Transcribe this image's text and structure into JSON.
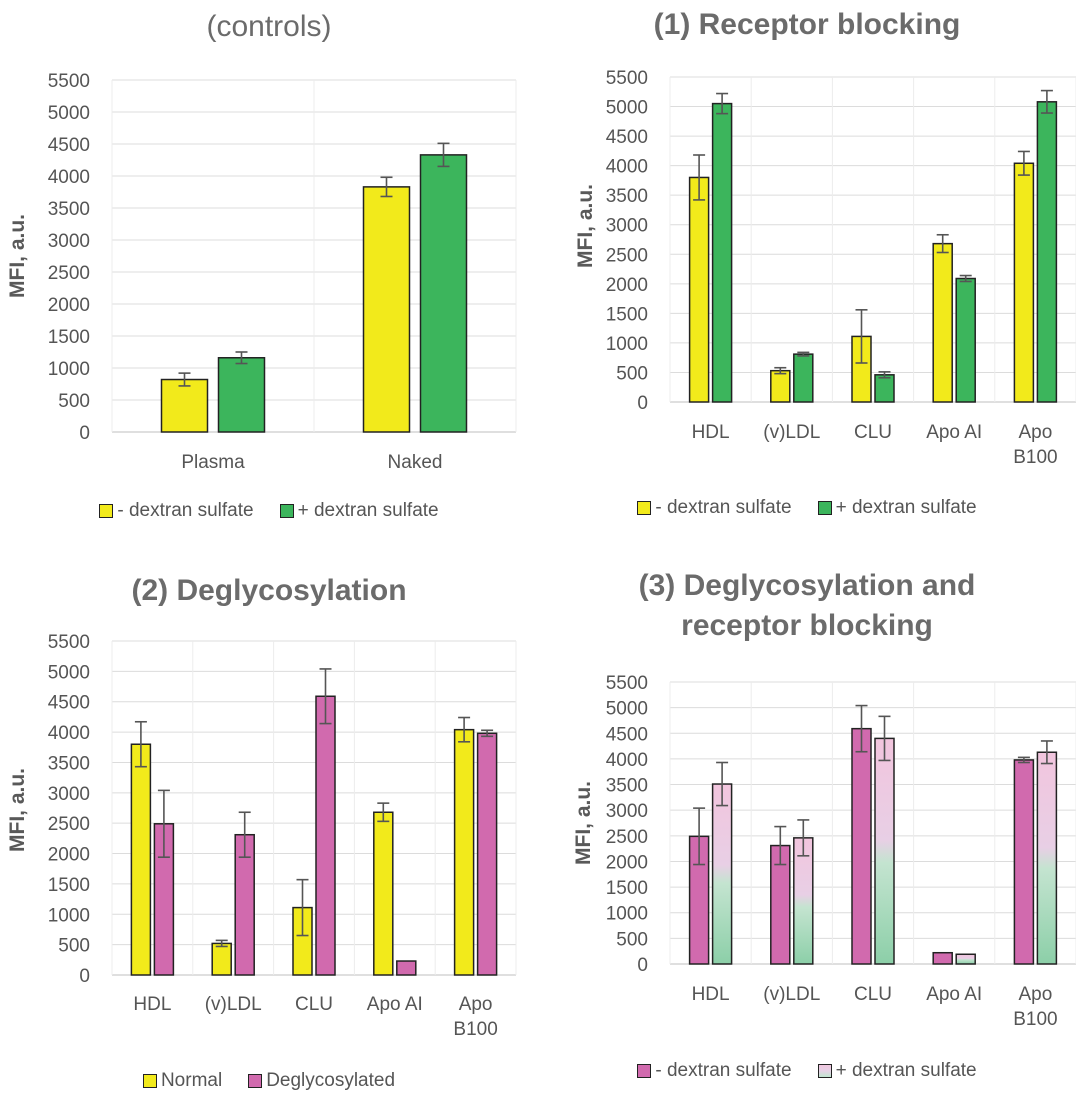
{
  "chart_data": [
    {
      "type": "bar",
      "title": "(controls)",
      "ylabel": "MFI, a.u.",
      "ylim": [
        0,
        5500
      ],
      "yticks": [
        0,
        500,
        1000,
        1500,
        2000,
        2500,
        3000,
        3500,
        4000,
        4500,
        5000,
        5500
      ],
      "categories": [
        "Plasma",
        "Naked"
      ],
      "series": [
        {
          "name": "- dextran sulfate",
          "color": "#f2ea1b",
          "values": [
            820,
            3830
          ],
          "errors": [
            100,
            150
          ]
        },
        {
          "name": "+ dextran sulfate",
          "color": "#3cb55c",
          "values": [
            1160,
            4330
          ],
          "errors": [
            90,
            180
          ]
        }
      ],
      "grid": true,
      "legend": "bottom"
    },
    {
      "type": "bar",
      "title": "(1) Receptor blocking",
      "ylabel": "MFI, a.u.",
      "ylim": [
        0,
        5500
      ],
      "yticks": [
        0,
        500,
        1000,
        1500,
        2000,
        2500,
        3000,
        3500,
        4000,
        4500,
        5000,
        5500
      ],
      "categories": [
        "HDL",
        "(v)LDL",
        "CLU",
        "Apo AI",
        "Apo B100"
      ],
      "series": [
        {
          "name": "- dextran sulfate",
          "color": "#f2ea1b",
          "values": [
            3800,
            530,
            1110,
            2680,
            4040
          ],
          "errors": [
            380,
            50,
            450,
            150,
            200
          ]
        },
        {
          "name": "+ dextran sulfate",
          "color": "#3cb55c",
          "values": [
            5050,
            810,
            460,
            2090,
            5080
          ],
          "errors": [
            170,
            30,
            50,
            50,
            190
          ]
        }
      ],
      "grid": true,
      "legend": "bottom"
    },
    {
      "type": "bar",
      "title": "(2) Deglycosylation",
      "ylabel": "MFI, a.u.",
      "ylim": [
        0,
        5500
      ],
      "yticks": [
        0,
        500,
        1000,
        1500,
        2000,
        2500,
        3000,
        3500,
        4000,
        4500,
        5000,
        5500
      ],
      "categories": [
        "HDL",
        "(v)LDL",
        "CLU",
        "Apo AI",
        "Apo B100"
      ],
      "series": [
        {
          "name": "Normal",
          "color": "#f2ea1b",
          "values": [
            3800,
            520,
            1110,
            2680,
            4040
          ],
          "errors": [
            370,
            50,
            460,
            150,
            200
          ]
        },
        {
          "name": "Deglycosylated",
          "color": "#d16aae",
          "values": [
            2490,
            2310,
            4590,
            230,
            3980
          ],
          "errors": [
            550,
            370,
            450,
            0,
            50
          ]
        }
      ],
      "grid": true,
      "legend": "bottom"
    },
    {
      "type": "bar",
      "title": "(3) Deglycosylation and receptor blocking",
      "ylabel": "MFI, a.u.",
      "ylim": [
        0,
        5500
      ],
      "yticks": [
        0,
        500,
        1000,
        1500,
        2000,
        2500,
        3000,
        3500,
        4000,
        4500,
        5000,
        5500
      ],
      "categories": [
        "HDL",
        "(v)LDL",
        "CLU",
        "Apo AI",
        "Apo B100"
      ],
      "series": [
        {
          "name": "- dextran sulfate",
          "color": "#d16aae",
          "values": [
            2490,
            2310,
            4590,
            220,
            3980
          ],
          "errors": [
            550,
            370,
            450,
            0,
            50
          ]
        },
        {
          "name": "+ dextran sulfate",
          "color": "#f0c6de",
          "values": [
            3510,
            2460,
            4400,
            190,
            4130
          ],
          "errors": [
            420,
            350,
            430,
            0,
            220
          ]
        }
      ],
      "grid": true,
      "legend": "bottom"
    }
  ]
}
